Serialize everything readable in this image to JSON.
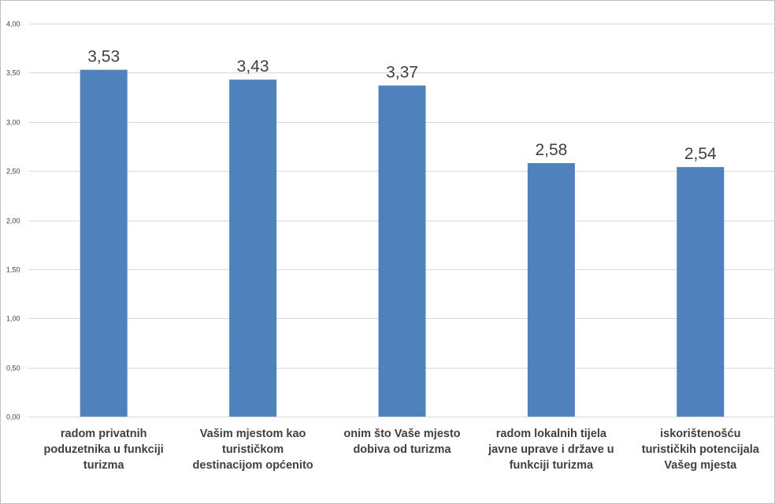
{
  "chart_data": {
    "type": "bar",
    "categories": [
      "radom privatnih poduzetnika u funkciji turizma",
      "Vašim mjestom kao turističkom destinacijom općenito",
      "onim što Vaše mjesto dobiva od turizma",
      "radom lokalnih tijela javne uprave i države u funkciji turizma",
      "iskorištenošću turističkih potencijala Vašeg mjesta"
    ],
    "category_lines": [
      [
        "radom privatnih",
        "poduzetnika u funkciji",
        "turizma"
      ],
      [
        "Vašim mjestom kao",
        "turističkom",
        "destinacijom općenito"
      ],
      [
        "onim što Vaše mjesto",
        "dobiva od turizma"
      ],
      [
        "radom lokalnih tijela",
        "javne uprave i države u",
        "funkciji turizma"
      ],
      [
        "iskorištenošću",
        "turističkih potencijala",
        "Vašeg mjesta"
      ]
    ],
    "values": [
      3.53,
      3.43,
      3.37,
      2.58,
      2.54
    ],
    "data_labels": [
      "3,53",
      "3,43",
      "3,37",
      "2,58",
      "2,54"
    ],
    "yticks": [
      "0,00",
      "0,50",
      "1,00",
      "1,50",
      "2,00",
      "2,50",
      "3,00",
      "3,50",
      "4,00"
    ],
    "ylim": [
      0,
      4
    ],
    "grid": true,
    "bar_color": "#4f81bd",
    "grid_color": "#d9d9d9"
  }
}
